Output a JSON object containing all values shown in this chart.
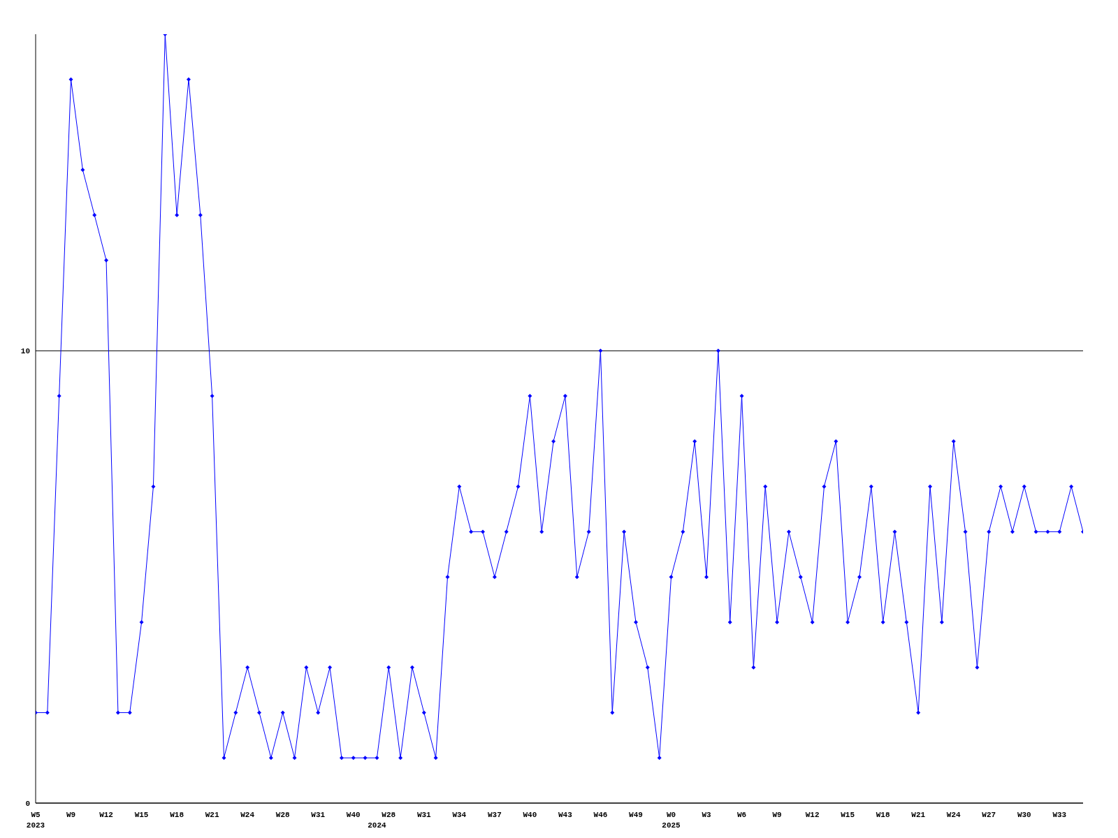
{
  "chart_data": {
    "type": "line",
    "categories": [
      "W5\n2023",
      null,
      null,
      "W9",
      null,
      null,
      "W12",
      null,
      null,
      "W15",
      null,
      null,
      "W18",
      null,
      null,
      "W21",
      null,
      null,
      "W24",
      null,
      null,
      "W28",
      null,
      null,
      "W31",
      null,
      null,
      "W40",
      null,
      "\n2024",
      "W28",
      null,
      null,
      "W31",
      null,
      null,
      "W34",
      null,
      null,
      "W37",
      null,
      null,
      "W40",
      null,
      null,
      "W43",
      null,
      null,
      "W46",
      null,
      null,
      "W49",
      null,
      null,
      "W0\n2025",
      null,
      null,
      "W3",
      null,
      null,
      "W6",
      null,
      null,
      "W9",
      null,
      null,
      "W12",
      null,
      null,
      "W15",
      null,
      null,
      "W18",
      null,
      null,
      "W21",
      null,
      null,
      "W24",
      null,
      null,
      "W27",
      null,
      null,
      "W30",
      null,
      null,
      "W33",
      null,
      null
    ],
    "series": [
      {
        "color": "#0000ff",
        "values": [
          2,
          2,
          9,
          16,
          14,
          13,
          12,
          2,
          2,
          4,
          7,
          17,
          13,
          16,
          13,
          9,
          1,
          2,
          3,
          2,
          1,
          2,
          1,
          3,
          2,
          3,
          1,
          1,
          1,
          1,
          3,
          1,
          3,
          2,
          1,
          5,
          7,
          6,
          6,
          5,
          6,
          7,
          9,
          6,
          8,
          9,
          5,
          6,
          10,
          2,
          6,
          4,
          3,
          1,
          5,
          6,
          8,
          5,
          10,
          4,
          9,
          3,
          7,
          4,
          6,
          5,
          4,
          7,
          8,
          4,
          5,
          7,
          4,
          6,
          4,
          2,
          7,
          4,
          8,
          6,
          3,
          6,
          7,
          6,
          7,
          6,
          6,
          6,
          7,
          6
        ]
      }
    ],
    "ylim": [
      0,
      17
    ],
    "yticks": [
      0,
      10
    ],
    "grid": "y",
    "marker": "diamond",
    "line_style": "solid"
  }
}
